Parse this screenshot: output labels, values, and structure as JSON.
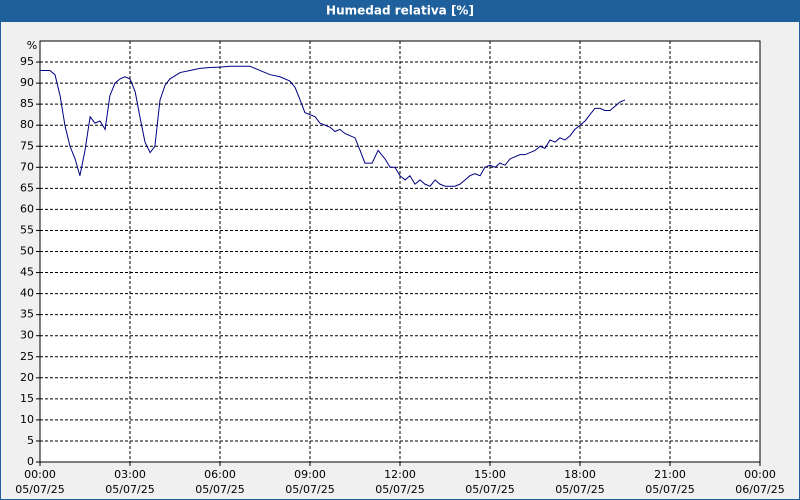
{
  "chart_data": {
    "type": "line",
    "title": "Humedad relativa [%]",
    "y_label": "%",
    "xlim": [
      0,
      24
    ],
    "xticks": [
      {
        "value": 0,
        "label": "00:00"
      },
      {
        "value": 3,
        "label": "03:00"
      },
      {
        "value": 6,
        "label": "06:00"
      },
      {
        "value": 9,
        "label": "09:00"
      },
      {
        "value": 12,
        "label": "12:00"
      },
      {
        "value": 15,
        "label": "15:00"
      },
      {
        "value": 18,
        "label": "18:00"
      },
      {
        "value": 21,
        "label": "21:00"
      },
      {
        "value": 24,
        "label": "00:00"
      }
    ],
    "xtick_dates": [
      "05/07/25",
      "05/07/25",
      "05/07/25",
      "05/07/25",
      "05/07/25",
      "05/07/25",
      "05/07/25",
      "05/07/25",
      "06/07/25"
    ],
    "ylim": [
      0,
      100
    ],
    "yticks": [
      0,
      5,
      10,
      15,
      20,
      25,
      30,
      35,
      40,
      45,
      50,
      55,
      60,
      65,
      70,
      75,
      80,
      85,
      90,
      95
    ],
    "grid": true,
    "x": [
      0,
      0.33,
      0.5,
      0.67,
      0.83,
      1,
      1.17,
      1.33,
      1.5,
      1.67,
      1.83,
      2,
      2.17,
      2.33,
      2.5,
      2.67,
      2.83,
      3,
      3.17,
      3.33,
      3.5,
      3.67,
      3.83,
      4,
      4.17,
      4.33,
      4.67,
      5,
      5.33,
      5.67,
      6,
      6.33,
      7,
      7.33,
      7.67,
      8,
      8.33,
      8.5,
      8.67,
      8.83,
      9.17,
      9.33,
      9.67,
      9.83,
      10,
      10.17,
      10.5,
      10.67,
      10.83,
      11.07,
      11.27,
      11.5,
      11.67,
      11.83,
      12,
      12.17,
      12.33,
      12.5,
      12.67,
      12.83,
      13,
      13.17,
      13.33,
      13.5,
      13.83,
      14,
      14.17,
      14.33,
      14.5,
      14.67,
      14.83,
      15,
      15.17,
      15.33,
      15.5,
      15.67,
      15.83,
      16,
      16.17,
      16.5,
      16.67,
      16.83,
      17,
      17.17,
      17.33,
      17.5,
      17.67,
      17.83,
      18,
      18.17,
      18.33,
      18.5,
      18.67,
      18.83,
      19,
      19.17,
      19.33,
      19.5
    ],
    "series": [
      {
        "name": "Humedad relativa",
        "color": "#000080",
        "values": [
          93,
          93,
          92,
          87,
          80,
          75,
          72,
          68,
          74,
          82,
          80.5,
          81,
          79,
          87,
          90,
          91,
          91.5,
          91,
          88,
          82,
          76,
          73.5,
          75,
          86,
          89.5,
          91,
          92.5,
          93,
          93.5,
          93.7,
          93.8,
          94,
          94,
          93,
          92,
          91.5,
          90.5,
          89,
          86,
          83,
          82,
          80.5,
          79.5,
          78.5,
          79,
          78,
          77,
          74,
          71,
          71,
          74,
          72,
          70,
          70,
          68,
          67,
          68,
          66,
          67,
          66,
          65.5,
          67,
          66,
          65.5,
          65.5,
          66,
          67,
          68,
          68.5,
          68,
          70,
          70.5,
          70,
          71,
          70.5,
          72,
          72.5,
          73,
          73,
          74,
          75,
          74.5,
          76.5,
          76,
          77,
          76.5,
          77.5,
          79,
          80,
          81,
          82.5,
          84,
          84,
          83.5,
          83.5,
          84.5,
          85.5,
          86
        ]
      }
    ]
  }
}
